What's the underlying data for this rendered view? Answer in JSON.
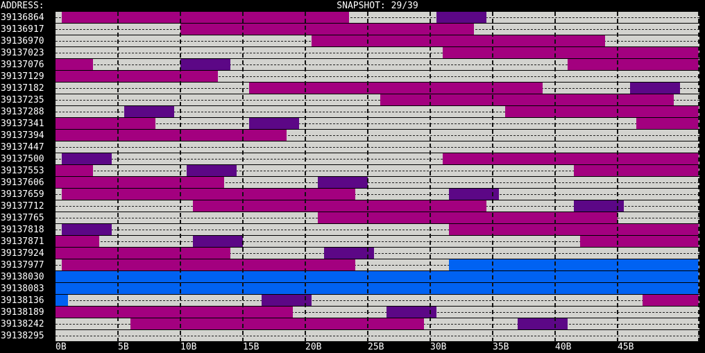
{
  "header": {
    "address_label": "ADDRESS:",
    "snapshot": "SNAPSHOT: 29/39"
  },
  "addresses": [
    "39136864",
    "39136917",
    "39136970",
    "39137023",
    "39137076",
    "39137129",
    "39137182",
    "39137235",
    "39137288",
    "39137341",
    "39137394",
    "39137447",
    "39137500",
    "39137553",
    "39137606",
    "39137659",
    "39137712",
    "39137765",
    "39137818",
    "39137871",
    "39137924",
    "39137977",
    "39138030",
    "39138083",
    "39138136",
    "39138189",
    "39138242",
    "39138295"
  ],
  "x_ticks": [
    "0B",
    "5B",
    "10B",
    "15B",
    "20B",
    "25B",
    "30B",
    "35B",
    "40B",
    "45B"
  ],
  "colors": {
    "magenta": "#a3007f",
    "purple": "#5c0786",
    "blue": "#0062f2",
    "free": "#d3d3cf",
    "background": "#000000"
  },
  "blocks": [
    [
      [
        0.5,
        23.5,
        "magenta"
      ],
      [
        30.5,
        34.5,
        "purple"
      ]
    ],
    [
      [
        10,
        33.5,
        "magenta"
      ]
    ],
    [
      [
        20.5,
        44,
        "magenta"
      ]
    ],
    [
      [
        31,
        51.5,
        "magenta"
      ]
    ],
    [
      [
        0,
        3,
        "magenta"
      ],
      [
        10,
        14,
        "purple"
      ],
      [
        41,
        51.5,
        "magenta"
      ]
    ],
    [
      [
        0,
        13,
        "magenta"
      ]
    ],
    [
      [
        15.5,
        39,
        "magenta"
      ],
      [
        46,
        50,
        "purple"
      ]
    ],
    [
      [
        26,
        49.5,
        "magenta"
      ]
    ],
    [
      [
        5.5,
        9.5,
        "purple"
      ],
      [
        36,
        51.5,
        "magenta"
      ]
    ],
    [
      [
        0,
        8,
        "magenta"
      ],
      [
        15.5,
        19.5,
        "purple"
      ],
      [
        46.5,
        51.5,
        "magenta"
      ]
    ],
    [
      [
        0,
        18.5,
        "magenta"
      ]
    ],
    [],
    [
      [
        0.5,
        4.5,
        "purple"
      ],
      [
        31,
        51.5,
        "magenta"
      ]
    ],
    [
      [
        0,
        3,
        "magenta"
      ],
      [
        10.5,
        14.5,
        "purple"
      ],
      [
        41.5,
        51.5,
        "magenta"
      ]
    ],
    [
      [
        0,
        13.5,
        "magenta"
      ],
      [
        21,
        25,
        "purple"
      ]
    ],
    [
      [
        0.5,
        24,
        "magenta"
      ],
      [
        31.5,
        35.5,
        "purple"
      ]
    ],
    [
      [
        11,
        34.5,
        "magenta"
      ],
      [
        41.5,
        45.5,
        "purple"
      ]
    ],
    [
      [
        21,
        45,
        "magenta"
      ]
    ],
    [
      [
        0.5,
        4.5,
        "purple"
      ],
      [
        31.5,
        51.5,
        "magenta"
      ]
    ],
    [
      [
        0,
        3.5,
        "magenta"
      ],
      [
        11,
        15,
        "purple"
      ],
      [
        42,
        51.5,
        "magenta"
      ]
    ],
    [
      [
        0,
        14,
        "magenta"
      ],
      [
        21.5,
        25.5,
        "purple"
      ]
    ],
    [
      [
        0.5,
        24,
        "magenta"
      ],
      [
        31.5,
        51.5,
        "blue"
      ]
    ],
    [
      [
        0,
        51.5,
        "blue"
      ]
    ],
    [
      [
        0,
        51.5,
        "blue"
      ]
    ],
    [
      [
        0,
        1,
        "blue"
      ],
      [
        16.5,
        20.5,
        "purple"
      ],
      [
        47,
        51.5,
        "magenta"
      ]
    ],
    [
      [
        0,
        19,
        "magenta"
      ],
      [
        26.5,
        30.5,
        "purple"
      ]
    ],
    [
      [
        6,
        29.5,
        "magenta"
      ],
      [
        37,
        41,
        "purple"
      ]
    ],
    []
  ]
}
